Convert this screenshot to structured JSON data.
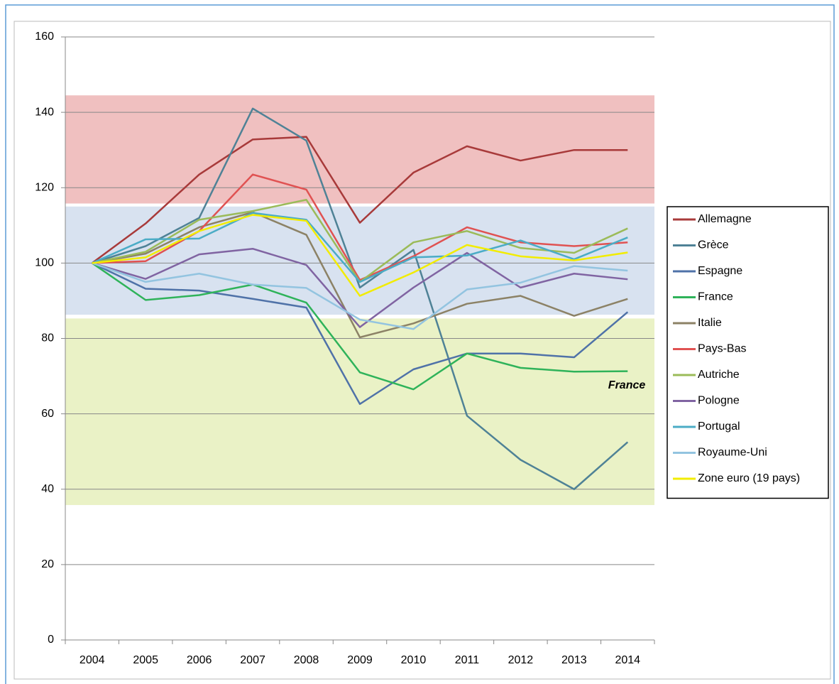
{
  "chart_data": {
    "type": "line",
    "categories": [
      "2004",
      "2005",
      "2006",
      "2007",
      "2008",
      "2009",
      "2010",
      "2011",
      "2012",
      "2013",
      "2014"
    ],
    "ylim": [
      0,
      160
    ],
    "yticks": [
      0,
      20,
      40,
      60,
      80,
      100,
      120,
      140,
      160
    ],
    "grid": true,
    "legend": "right",
    "bands": [
      {
        "from": 115.8,
        "to": 144.5,
        "color": "#f0c0c0"
      },
      {
        "from": 86.3,
        "to": 115,
        "color": "#d8e2f0"
      },
      {
        "from": 35.8,
        "to": 85.3,
        "color": "#eaf2c6"
      }
    ],
    "annotation": {
      "text": "France",
      "x": "2014",
      "y": 67.5,
      "color": "#1e7a2a"
    },
    "series": [
      {
        "name": "Allemagne",
        "color": "#a83a3a",
        "values": [
          100,
          110.5,
          123.5,
          132.8,
          133.5,
          110.7,
          124,
          131,
          127.2,
          130,
          130
        ]
      },
      {
        "name": "Grèce",
        "color": "#4f8296",
        "values": [
          100,
          104.5,
          112,
          141,
          132.5,
          93.5,
          103.5,
          59.5,
          47.8,
          40,
          52.5
        ]
      },
      {
        "name": "Espagne",
        "color": "#4f72a8",
        "values": [
          100,
          93.2,
          92.7,
          90.5,
          88.2,
          62.6,
          71.8,
          76,
          76,
          75,
          87
        ]
      },
      {
        "name": "France",
        "color": "#2fb35a",
        "values": [
          100,
          90.2,
          91.5,
          94.3,
          89.5,
          71,
          66.5,
          76,
          72.2,
          71.2,
          71.3
        ]
      },
      {
        "name": "Italie",
        "color": "#8c8266",
        "values": [
          100,
          102.5,
          109.5,
          113.5,
          107.5,
          80.3,
          84,
          89.2,
          91.3,
          86,
          90.5
        ]
      },
      {
        "name": "Pays-Bas",
        "color": "#e05252",
        "values": [
          100,
          100.5,
          108.5,
          123.5,
          119.5,
          95.5,
          101.8,
          109.5,
          105.5,
          104.5,
          105.5
        ]
      },
      {
        "name": "Autriche",
        "color": "#9bbb59",
        "values": [
          100,
          103,
          111.5,
          113.8,
          116.8,
          95,
          105.5,
          108.5,
          104,
          102.7,
          109.2
        ]
      },
      {
        "name": "Pologne",
        "color": "#8064a2",
        "values": [
          100,
          95.8,
          102.3,
          103.8,
          99.5,
          83,
          93.5,
          102.7,
          93.5,
          97.2,
          95.7
        ]
      },
      {
        "name": "Portugal",
        "color": "#4bacc6",
        "values": [
          100,
          106.3,
          106.5,
          113.3,
          111.5,
          95,
          101.5,
          102,
          106,
          101,
          106.8
        ]
      },
      {
        "name": "Royaume-Uni",
        "color": "#93c4e0",
        "values": [
          100,
          95,
          97.2,
          94.3,
          93.4,
          85,
          82.5,
          93,
          94.8,
          99.2,
          98
        ]
      },
      {
        "name": "Zone euro (19 pays)",
        "color": "#f2ec00",
        "values": [
          100,
          101.5,
          108.5,
          112.8,
          111.2,
          91.3,
          97.5,
          104.8,
          101.8,
          100.7,
          102.8
        ]
      }
    ]
  }
}
